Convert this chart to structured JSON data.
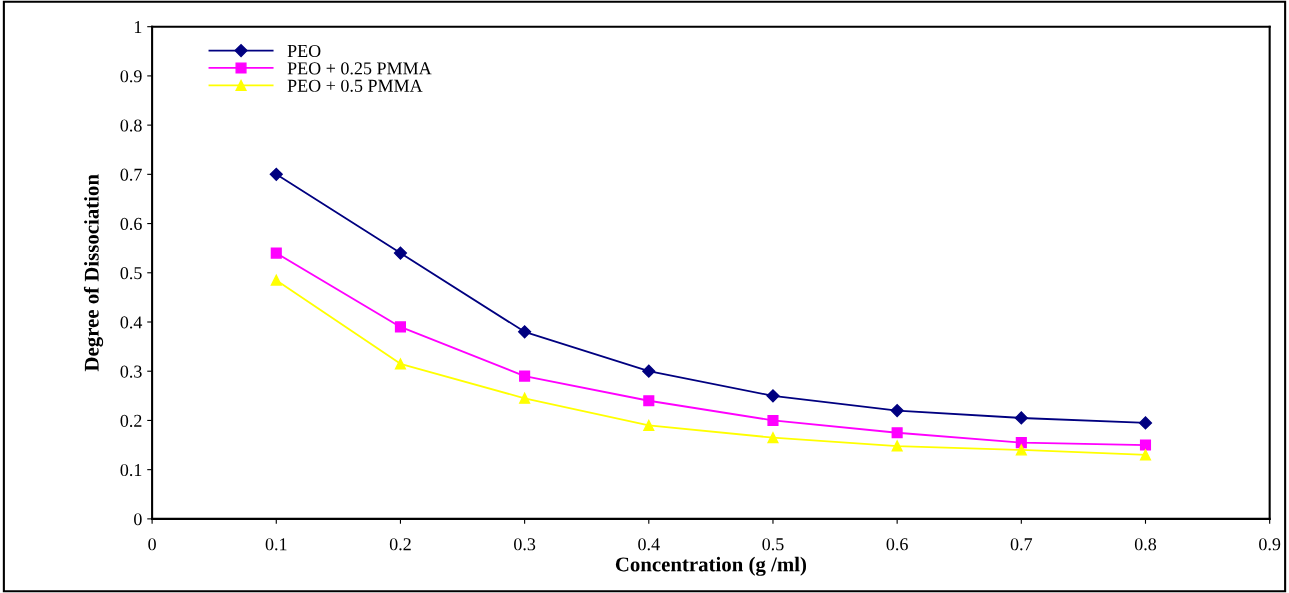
{
  "chart_data": {
    "type": "line",
    "xlabel": "Concentration (g /ml)",
    "ylabel": "Degree of Dissociation",
    "x": [
      0.1,
      0.2,
      0.3,
      0.4,
      0.5,
      0.6,
      0.7,
      0.8
    ],
    "series": [
      {
        "name": "PEO",
        "color": "#000080",
        "marker": "diamond",
        "values": [
          0.7,
          0.54,
          0.38,
          0.3,
          0.25,
          0.22,
          0.205,
          0.195
        ]
      },
      {
        "name": "PEO + 0.25 PMMA",
        "color": "#ff00ff",
        "marker": "square",
        "values": [
          0.54,
          0.39,
          0.29,
          0.24,
          0.2,
          0.175,
          0.155,
          0.15
        ]
      },
      {
        "name": "PEO + 0.5 PMMA",
        "color": "#ffff00",
        "marker": "triangle",
        "values": [
          0.485,
          0.315,
          0.245,
          0.19,
          0.165,
          0.148,
          0.14,
          0.13
        ]
      }
    ],
    "xlim": [
      0,
      0.9
    ],
    "xticks": [
      0,
      0.1,
      0.2,
      0.3,
      0.4,
      0.5,
      0.6,
      0.7,
      0.8,
      0.9
    ],
    "ylim": [
      0,
      1
    ],
    "yticks": [
      0,
      0.1,
      0.2,
      0.3,
      0.4,
      0.5,
      0.6,
      0.7,
      0.8,
      0.9,
      1
    ],
    "grid": false,
    "legend": "top left",
    "line_style": "solid"
  }
}
